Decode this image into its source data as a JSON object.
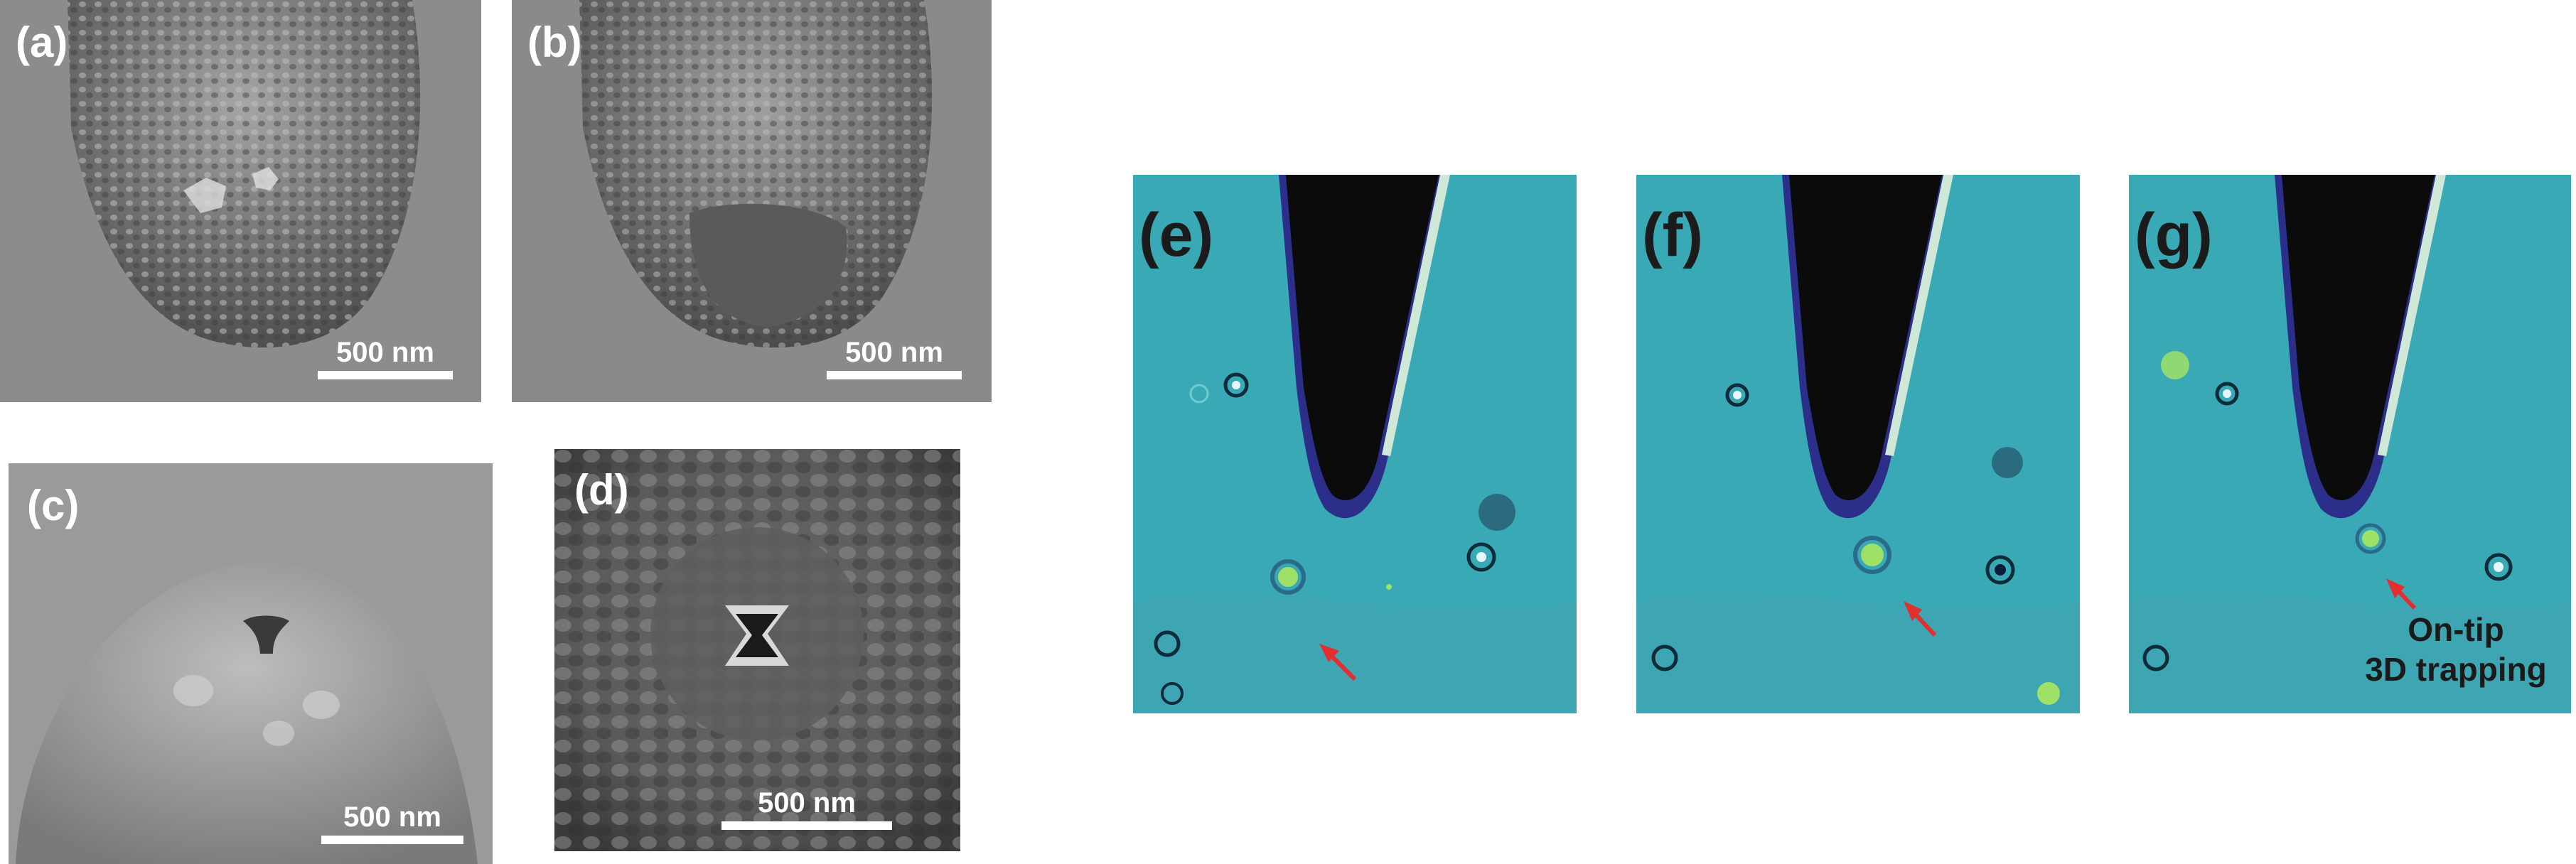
{
  "panels": {
    "a": {
      "label": "(a)",
      "scale": "500 nm"
    },
    "b": {
      "label": "(b)",
      "scale": "500 nm"
    },
    "c": {
      "label": "(c)",
      "scale": "500 nm"
    },
    "d": {
      "label": "(d)",
      "scale": "500 nm"
    },
    "e": {
      "label": "(e)"
    },
    "f": {
      "label": "(f)"
    },
    "g": {
      "label": "(g)",
      "annotation_line1": "On-tip",
      "annotation_line2": "3D trapping"
    }
  },
  "colors": {
    "sem_background": "#8a8a8a",
    "sem_tip": "#5c5c5c",
    "optical_background": "#3aa9b6",
    "tip_dark": "#0b0b0b",
    "tip_edge": "#2b2f8a",
    "arrow": "#e23030"
  }
}
